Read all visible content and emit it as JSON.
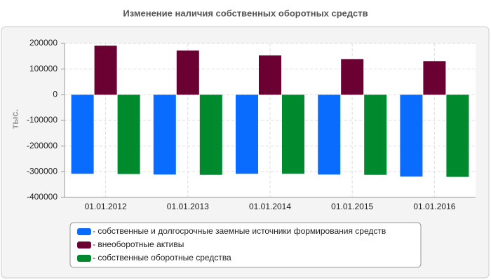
{
  "chart_data": {
    "type": "bar",
    "title": "Изменение наличия собственных оборотных средств",
    "y_label": "тыс.",
    "categories": [
      "01.01.2012",
      "01.01.2013",
      "01.01.2014",
      "01.01.2015",
      "01.01.2016"
    ],
    "series": [
      {
        "name": "- собственные и долгосрочные заемные источники формирования средств",
        "color": "#0a6cff",
        "values": [
          -308000,
          -311000,
          -308000,
          -311000,
          -319000
        ]
      },
      {
        "name": "- внеоборотные активы",
        "color": "#6b0033",
        "values": [
          191000,
          172000,
          153000,
          139000,
          131000
        ]
      },
      {
        "name": "- собственные оборотные средства",
        "color": "#008a2e",
        "values": [
          -309000,
          -312000,
          -308000,
          -312000,
          -320000
        ]
      }
    ],
    "ylim": [
      -400000,
      200000
    ],
    "yticks": [
      -400000,
      -300000,
      -200000,
      -100000,
      0,
      100000,
      200000
    ],
    "grid": true,
    "legend": "bottom"
  }
}
